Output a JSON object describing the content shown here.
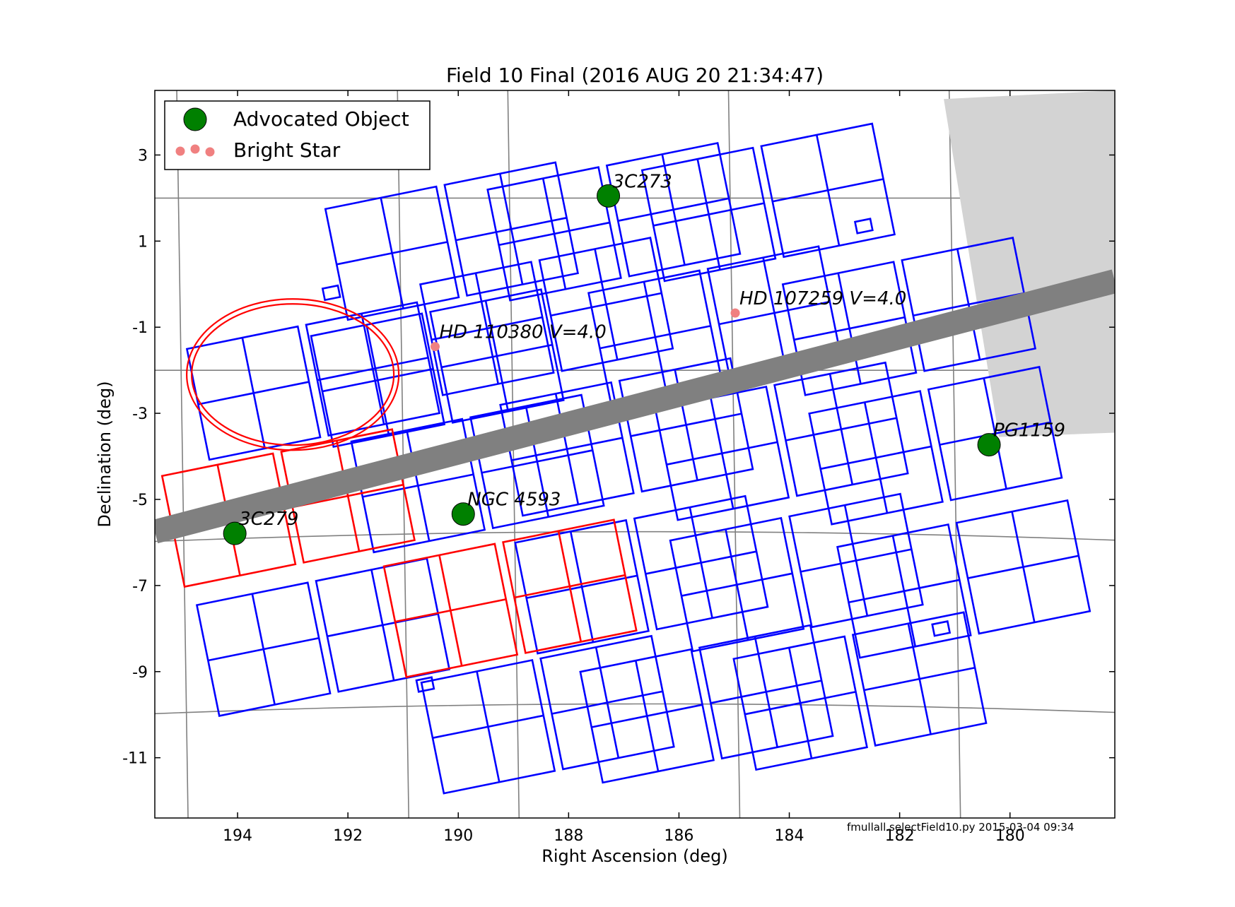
{
  "chart_data": {
    "type": "scatter",
    "title": "Field 10 Final (2016 AUG 20 21:34:47)",
    "xlabel": "Right Ascension (deg)",
    "ylabel": "Declination (deg)",
    "xlim": [
      195.5,
      178.1
    ],
    "ylim": [
      -12.4,
      4.5
    ],
    "x_inverted": true,
    "x_ticks": [
      194,
      192,
      190,
      188,
      186,
      184,
      182,
      180
    ],
    "y_ticks": [
      3,
      1,
      -1,
      -3,
      -5,
      -7,
      -9,
      -11
    ],
    "legend": {
      "placement": "top-left",
      "entries": [
        {
          "label": "Advocated Object",
          "color": "#008000",
          "marker": "large-circle"
        },
        {
          "label": "Bright Star",
          "color": "#f08080",
          "marker": "small-dots"
        }
      ]
    },
    "series": [
      {
        "name": "Advocated Object",
        "color": "#008000",
        "points": [
          {
            "label": "3C273",
            "ra": 187.28,
            "dec": 2.05
          },
          {
            "label": "3C279",
            "ra": 194.05,
            "dec": -5.79
          },
          {
            "label": "NGC 4593",
            "ra": 189.91,
            "dec": -5.34
          },
          {
            "label": "PG1159",
            "ra": 180.38,
            "dec": -3.73
          }
        ]
      },
      {
        "name": "Bright Star",
        "color": "#f08080",
        "points": [
          {
            "label": "HD 110380 V=4.0",
            "ra": 190.42,
            "dec": -1.45
          },
          {
            "label": "HD 107259 V=4.0",
            "ra": 184.98,
            "dec": -0.67
          }
        ]
      }
    ],
    "galactic_band": {
      "color": "#808080",
      "x": [
        195.5,
        178.1
      ],
      "y": [
        -5.75,
        0.07
      ]
    },
    "excluded_region": {
      "color": "#d3d3d3",
      "x": [
        181.2,
        178.1,
        178.1,
        180.2,
        181.2
      ],
      "y": [
        4.3,
        4.5,
        -3.45,
        -3.55,
        4.3
      ]
    },
    "ccd_pointings": {
      "colors": {
        "observable": "#0000ff",
        "blocked": "#ff0000"
      },
      "centers": [
        {
          "ra": 190.12,
          "dec": 1.0,
          "status": "observable"
        },
        {
          "ra": 187.18,
          "dec": 1.45,
          "status": "observable"
        },
        {
          "ra": 184.38,
          "dec": 1.9,
          "status": "observable"
        },
        {
          "ra": 188.4,
          "dec": -0.75,
          "status": "observable"
        },
        {
          "ra": 185.35,
          "dec": -0.95,
          "status": "observable"
        },
        {
          "ra": 181.83,
          "dec": -0.75,
          "status": "observable"
        },
        {
          "ra": 192.63,
          "dec": -2.25,
          "status": "observable"
        },
        {
          "ra": 190.38,
          "dec": -1.95,
          "status": "observable"
        },
        {
          "ra": 189.65,
          "dec": -4.4,
          "status": "observable"
        },
        {
          "ra": 186.95,
          "dec": -3.55,
          "status": "observable"
        },
        {
          "ra": 184.14,
          "dec": -3.65,
          "status": "observable"
        },
        {
          "ra": 181.35,
          "dec": -3.75,
          "status": "observable"
        },
        {
          "ra": 186.68,
          "dec": -6.75,
          "status": "observable"
        },
        {
          "ra": 183.87,
          "dec": -6.7,
          "status": "observable"
        },
        {
          "ra": 180.84,
          "dec": -6.85,
          "status": "observable"
        },
        {
          "ra": 192.45,
          "dec": -8.2,
          "status": "observable"
        },
        {
          "ra": 188.38,
          "dec": -10.0,
          "status": "observable"
        },
        {
          "ra": 185.5,
          "dec": -9.75,
          "status": "observable"
        },
        {
          "ra": 182.72,
          "dec": -9.45,
          "status": "observable"
        },
        {
          "ra": 193.08,
          "dec": -5.2,
          "status": "blocked"
        },
        {
          "ra": 189.06,
          "dec": -7.3,
          "status": "blocked"
        }
      ],
      "small_squares": [
        {
          "ra": 192.3,
          "dec": -0.2
        },
        {
          "ra": 182.65,
          "dec": 1.35
        },
        {
          "ra": 190.6,
          "dec": -9.3
        },
        {
          "ra": 181.25,
          "dec": -8.0
        }
      ]
    },
    "highlight_ellipse": {
      "color": "#ff0000",
      "ra": 193.0,
      "dec": -2.1,
      "note": "double ring"
    }
  },
  "footer": {
    "text": "fmullall selectField10.py 2015-03-04 09:34"
  }
}
